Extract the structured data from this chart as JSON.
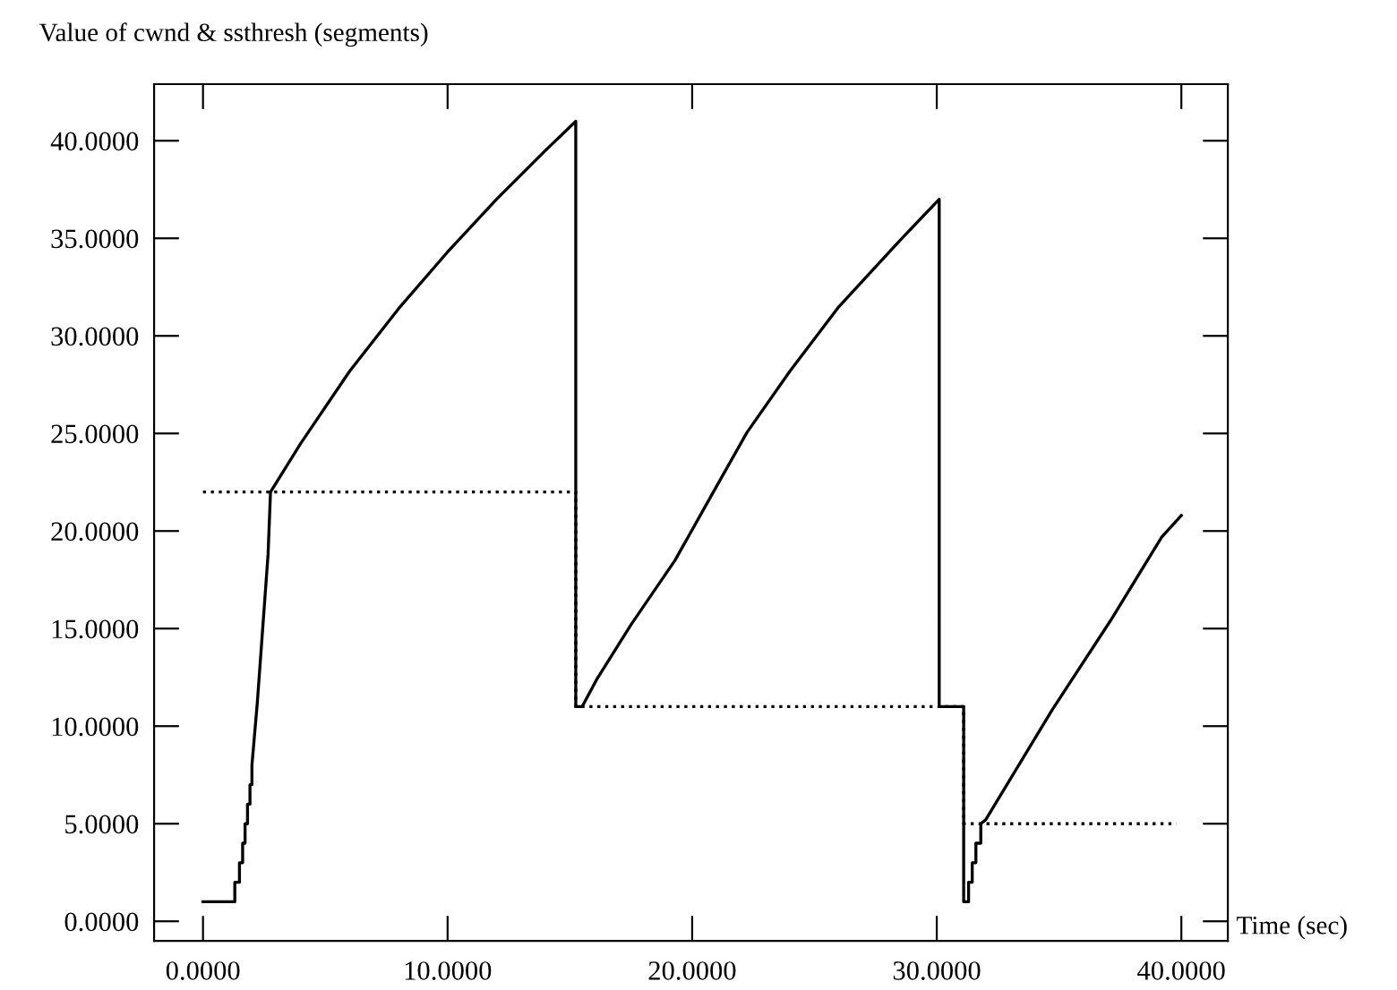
{
  "chart_data": {
    "type": "line",
    "xlabel": "Time (sec)",
    "ylabel": "Value of cwnd & ssthresh (segments)",
    "xlim": [
      -2,
      41.9
    ],
    "ylim": [
      -1,
      42.9
    ],
    "xticks": [
      {
        "value": 0,
        "label": "0.0000"
      },
      {
        "value": 10,
        "label": "10.0000"
      },
      {
        "value": 20,
        "label": "20.0000"
      },
      {
        "value": 30,
        "label": "30.0000"
      },
      {
        "value": 40,
        "label": "40.0000"
      }
    ],
    "yticks": [
      {
        "value": 0,
        "label": "0.0000"
      },
      {
        "value": 5,
        "label": "5.0000"
      },
      {
        "value": 10,
        "label": "10.0000"
      },
      {
        "value": 15,
        "label": "15.0000"
      },
      {
        "value": 20,
        "label": "20.0000"
      },
      {
        "value": 25,
        "label": "25.0000"
      },
      {
        "value": 30,
        "label": "30.0000"
      },
      {
        "value": 35,
        "label": "35.0000"
      },
      {
        "value": 40,
        "label": "40.0000"
      }
    ],
    "grid": false,
    "legend": false,
    "marker": "none",
    "series": [
      {
        "color": "#000000",
        "line_style": "solid",
        "x": [
          0,
          1.3,
          1.3,
          1.49,
          1.49,
          1.62,
          1.62,
          1.72,
          1.72,
          1.82,
          1.82,
          1.92,
          1.92,
          2.0,
          2.0,
          2.22,
          2.66,
          2.76,
          4,
          6,
          8,
          10,
          12,
          14,
          15.24,
          15.24,
          15.5,
          16.1,
          17.5,
          19.3,
          21,
          22.24,
          24,
          26,
          28.35,
          30.1,
          30.1,
          31.1,
          31.1,
          31.3,
          31.3,
          31.45,
          31.45,
          31.6,
          31.6,
          31.8,
          31.8,
          32.0,
          34.7,
          37.1,
          39.2,
          40
        ],
        "values": [
          1,
          1,
          2,
          2,
          3,
          3,
          4,
          4,
          5,
          5,
          6,
          6,
          7,
          7,
          8,
          11.2,
          18.8,
          22,
          24.5,
          28.2,
          31.4,
          34.3,
          37.0,
          39.5,
          41.0,
          11,
          11,
          12.4,
          15.2,
          18.5,
          22.3,
          25.05,
          28.2,
          31.5,
          34.7,
          37,
          11,
          11,
          1,
          1,
          2,
          2,
          3,
          3,
          4,
          4,
          5,
          5.2,
          10.8,
          15.4,
          19.7,
          20.8
        ]
      },
      {
        "color": "#000000",
        "line_style": "dotted",
        "x": [
          0,
          15.24,
          15.24,
          31.1,
          31.1,
          39.8
        ],
        "values": [
          22,
          22,
          11,
          11,
          5,
          5
        ]
      }
    ]
  }
}
